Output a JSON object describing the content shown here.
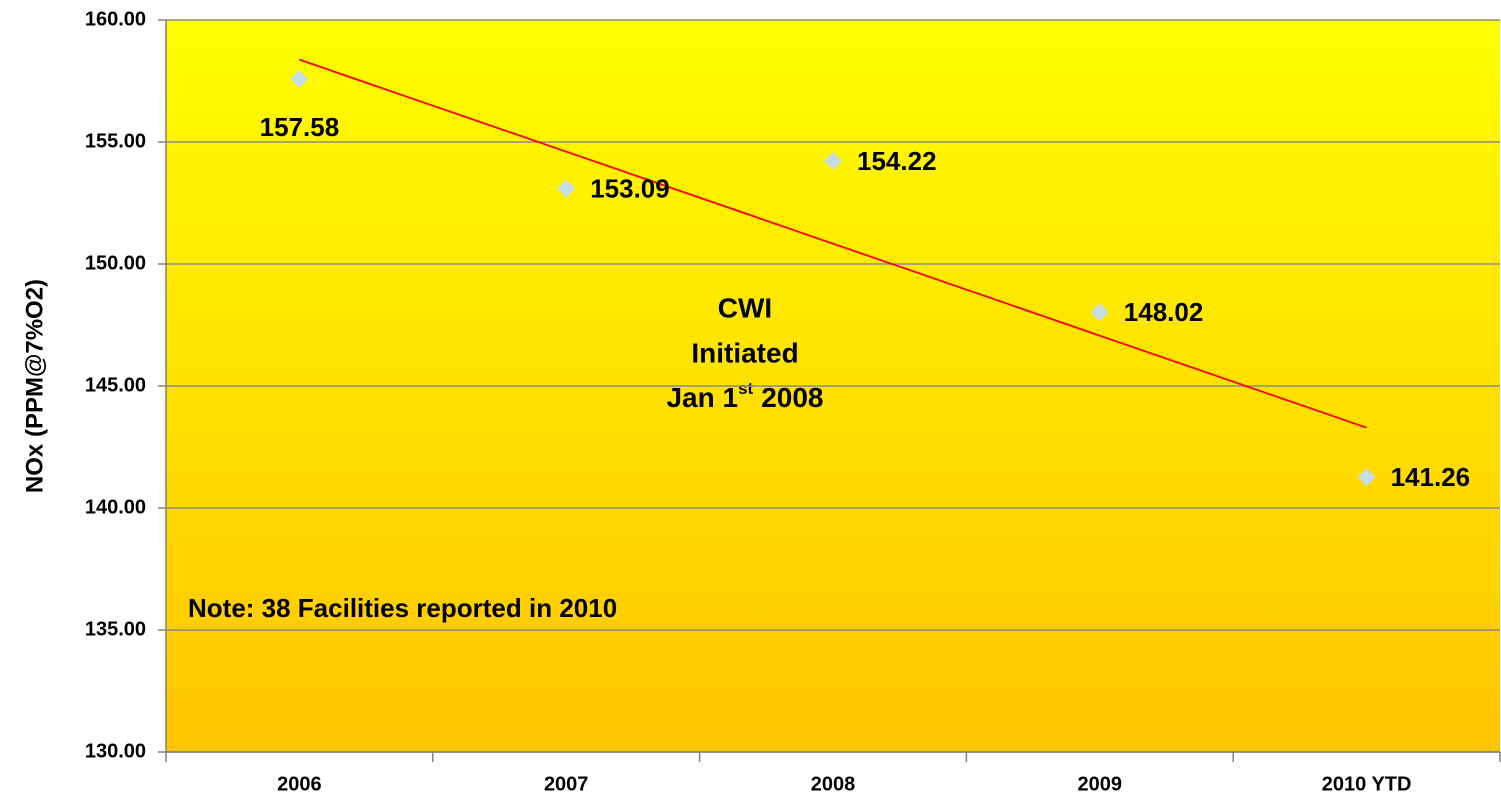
{
  "chart_data": {
    "type": "line",
    "y_label": "NOx (PPM@7%O2)",
    "categories": [
      "2006",
      "2007",
      "2008",
      "2009",
      "2010 YTD"
    ],
    "series": [
      {
        "name": "NOx",
        "color": "#c5dde6",
        "values": [
          157.58,
          153.09,
          154.22,
          148.02,
          141.26
        ]
      }
    ],
    "trendline": {
      "type": "linear",
      "color": "#ff0000"
    },
    "ylim": [
      130,
      160
    ],
    "yticks": [
      {
        "value": 130,
        "label": "130.00"
      },
      {
        "value": 135,
        "label": "135.00"
      },
      {
        "value": 140,
        "label": "140.00"
      },
      {
        "value": 145,
        "label": "145.00"
      },
      {
        "value": 150,
        "label": "150.00"
      },
      {
        "value": 155,
        "label": "155.00"
      },
      {
        "value": 160,
        "label": "160.00"
      }
    ],
    "grid": true,
    "annotation": {
      "lines": [
        "CWI",
        "Initiated"
      ],
      "date": {
        "text": "Jan 1",
        "sup": "st",
        "year": "2008"
      }
    },
    "note": "Note:  38 Facilities reported in 2010"
  }
}
